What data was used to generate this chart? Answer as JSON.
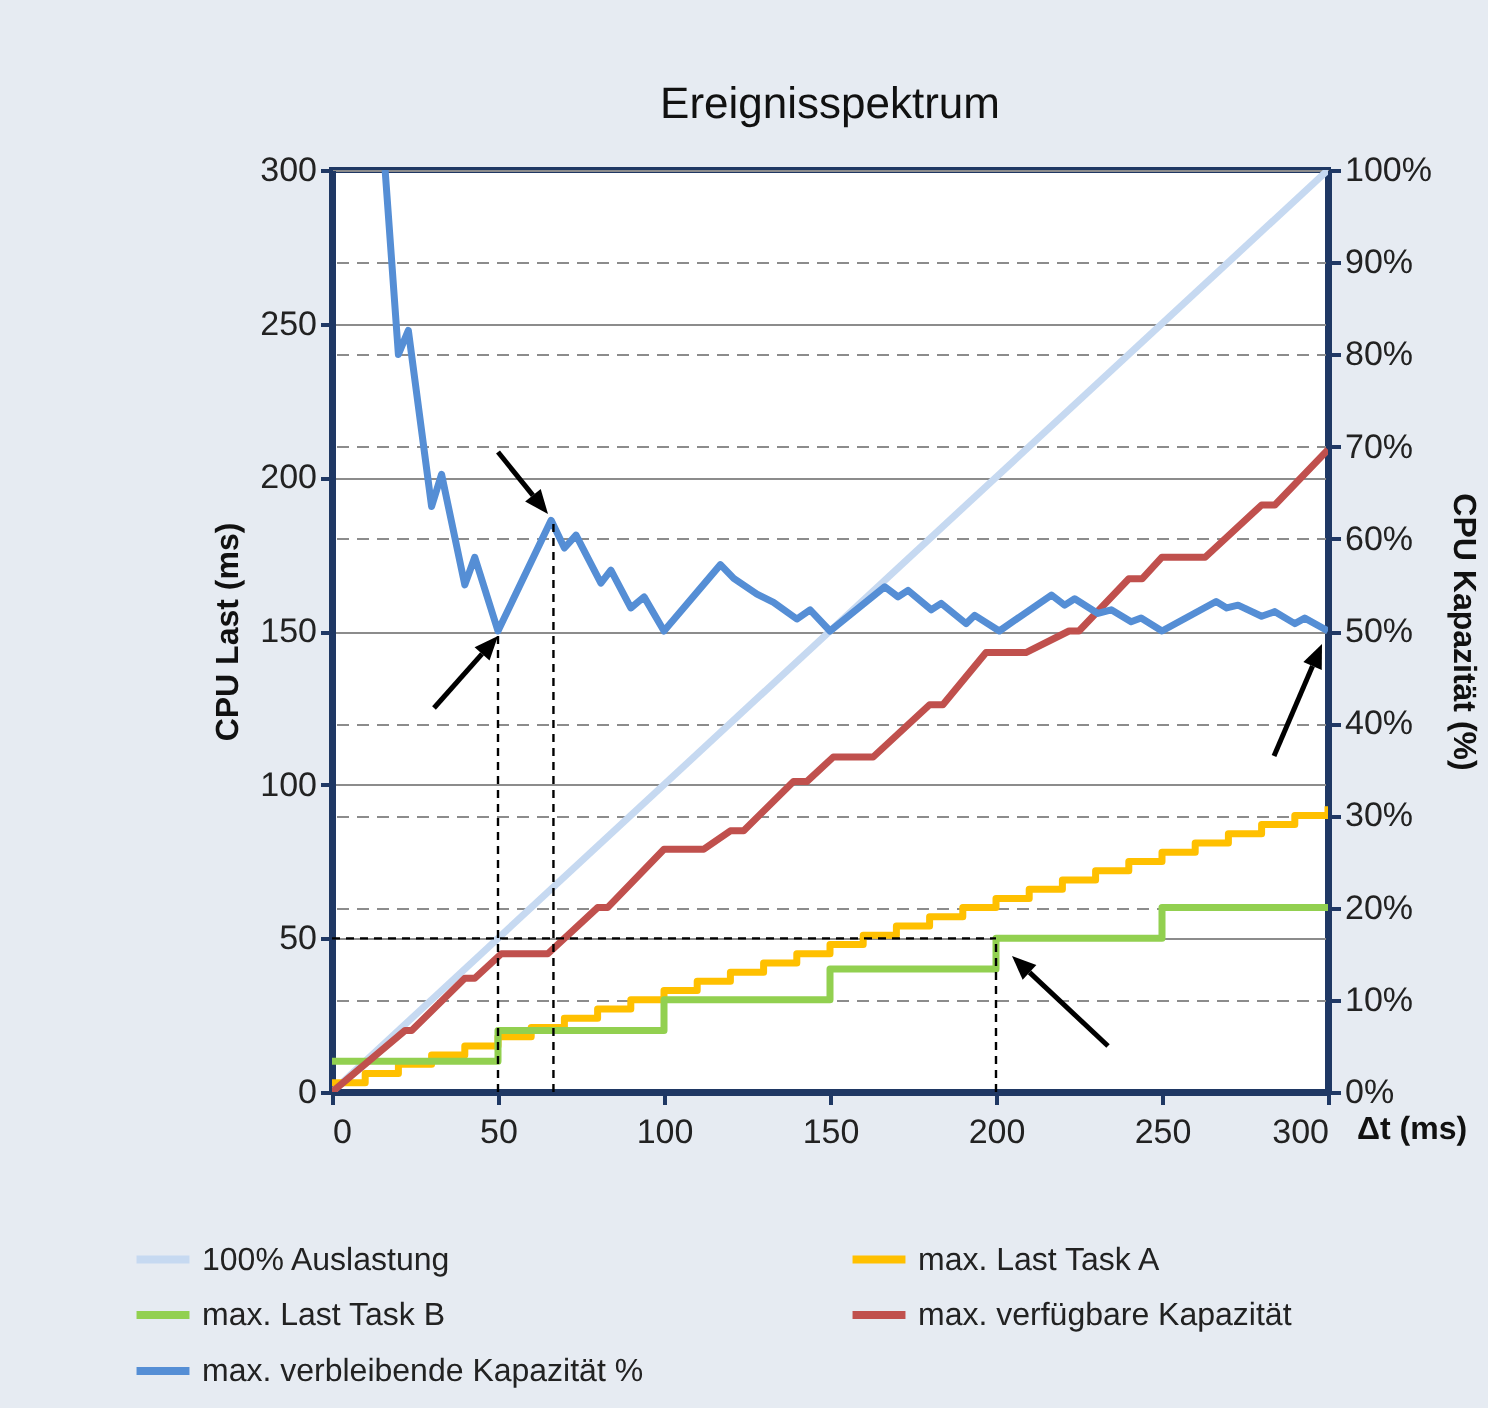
{
  "chart_data": {
    "type": "line",
    "title": "Ereignisspektrum",
    "xlabel": "Δt (ms)",
    "ylabel": "CPU Last (ms)",
    "y2label": "CPU Kapazität (%)",
    "xlim": [
      0,
      300
    ],
    "xticks": [
      0,
      50,
      100,
      150,
      200,
      250,
      300
    ],
    "ylim": [
      0,
      300
    ],
    "yticks": [
      0,
      50,
      100,
      150,
      200,
      250,
      300
    ],
    "y2lim": [
      0,
      100
    ],
    "y2ticks": [
      {
        "value": 0,
        "label": "0%"
      },
      {
        "value": 10,
        "label": "10%"
      },
      {
        "value": 20,
        "label": "20%"
      },
      {
        "value": 30,
        "label": "30%"
      },
      {
        "value": 40,
        "label": "40%"
      },
      {
        "value": 50,
        "label": "50%"
      },
      {
        "value": 60,
        "label": "60%"
      },
      {
        "value": 70,
        "label": "70%"
      },
      {
        "value": 80,
        "label": "80%"
      },
      {
        "value": 90,
        "label": "90%"
      },
      {
        "value": 100,
        "label": "100%"
      }
    ],
    "grid": "y",
    "legend": "bottom",
    "series": [
      {
        "name": "100% Auslastung",
        "color": "#c6d9f1",
        "x": [
          0,
          300
        ],
        "values": [
          0,
          300
        ]
      },
      {
        "name": "max. Last Task A",
        "color": "#ffc000",
        "type": "step",
        "x": [
          0,
          10,
          20,
          30,
          40,
          50,
          60,
          70,
          80,
          90,
          100,
          110,
          120,
          130,
          140,
          150,
          160,
          170,
          180,
          190,
          200,
          210,
          220,
          230,
          240,
          250,
          260,
          270,
          280,
          290,
          300
        ],
        "values": [
          3,
          6,
          9,
          12,
          15,
          18,
          21,
          24,
          27,
          30,
          33,
          36,
          39,
          42,
          45,
          48,
          51,
          54,
          57,
          60,
          63,
          66,
          69,
          72,
          75,
          78,
          81,
          84,
          87,
          90,
          93
        ]
      },
      {
        "name": "max. Last Task B",
        "color": "#92d050",
        "type": "step",
        "x": [
          0,
          50,
          100,
          150,
          200,
          250,
          300
        ],
        "values": [
          10,
          20,
          30,
          40,
          50,
          60,
          60
        ]
      },
      {
        "name": "max. verfügbare Kapazität",
        "color": "#c0504d",
        "x": [
          0,
          22,
          24,
          40,
          43,
          51,
          65,
          80,
          83,
          100,
          112,
          120,
          124,
          139,
          143,
          151,
          163,
          180,
          184,
          197,
          209,
          222,
          225,
          240,
          244,
          250,
          263,
          280,
          284,
          300
        ],
        "values": [
          0,
          20,
          20,
          37,
          37,
          45,
          45,
          60,
          60,
          79,
          79,
          85,
          85,
          101,
          101,
          109,
          109,
          126,
          126,
          143,
          143,
          150,
          150,
          167,
          167,
          174,
          174,
          191,
          191,
          209
        ]
      },
      {
        "name": "max. verbleibende Kapazität %",
        "color": "#558ed5",
        "axis": "y2",
        "x": [
          16,
          20,
          23,
          30,
          33,
          40,
          43,
          50,
          66,
          70,
          73.5,
          81,
          84,
          90,
          94,
          100,
          117,
          121,
          128,
          133,
          140,
          144,
          150,
          166.5,
          170.5,
          173.5,
          180.5,
          183.5,
          191,
          193.6,
          201,
          216.7,
          220.7,
          223.7,
          230.7,
          234.7,
          240.7,
          243.7,
          250,
          266.3,
          269.5,
          272.9,
          280,
          284,
          290,
          293,
          300
        ],
        "values": [
          100,
          80,
          82.6,
          63.5,
          67,
          55,
          58,
          50,
          62,
          59,
          60.4,
          55.2,
          56.6,
          52.5,
          53.7,
          50,
          57.2,
          55.7,
          54,
          53.1,
          51.3,
          52.3,
          50,
          54.8,
          53.7,
          54.4,
          52.3,
          53,
          50.8,
          51.7,
          50,
          53.9,
          52.8,
          53.5,
          51.9,
          52.3,
          51,
          51.4,
          50,
          53.2,
          52.5,
          52.8,
          51.6,
          52.1,
          50.8,
          51.4,
          50
        ]
      },
      {
        "color": "#000000",
        "line_style": "dashed",
        "x": [
          50,
          50
        ],
        "values": [
          0,
          150
        ]
      },
      {
        "color": "#000000",
        "line_style": "dashed",
        "x": [
          66.7,
          66.7
        ],
        "values": [
          0,
          185
        ]
      },
      {
        "color": "#000000",
        "line_style": "dashed",
        "x": [
          200,
          200
        ],
        "values": [
          0,
          50
        ]
      },
      {
        "color": "#000000",
        "line_style": "dashed",
        "x": [
          0,
          200
        ],
        "values": [
          50,
          50
        ]
      }
    ]
  }
}
